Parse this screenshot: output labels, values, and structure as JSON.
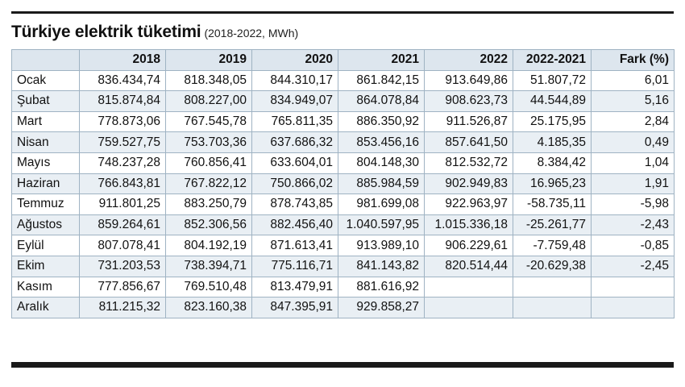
{
  "title": "Türkiye elektrik tüketimi",
  "subtitle": "(2018-2022, MWh)",
  "columns": [
    "",
    "2018",
    "2019",
    "2020",
    "2021",
    "2022",
    "2022-2021",
    "Fark (%)"
  ],
  "rows": [
    [
      "Ocak",
      "836.434,74",
      "818.348,05",
      "844.310,17",
      "861.842,15",
      "913.649,86",
      "51.807,72",
      "6,01"
    ],
    [
      "Şubat",
      "815.874,84",
      "808.227,00",
      "834.949,07",
      "864.078,84",
      "908.623,73",
      "44.544,89",
      "5,16"
    ],
    [
      "Mart",
      "778.873,06",
      "767.545,78",
      "765.811,35",
      "886.350,92",
      "911.526,87",
      "25.175,95",
      "2,84"
    ],
    [
      "Nisan",
      "759.527,75",
      "753.703,36",
      "637.686,32",
      "853.456,16",
      "857.641,50",
      "4.185,35",
      "0,49"
    ],
    [
      "Mayıs",
      "748.237,28",
      "760.856,41",
      "633.604,01",
      "804.148,30",
      "812.532,72",
      "8.384,42",
      "1,04"
    ],
    [
      "Haziran",
      "766.843,81",
      "767.822,12",
      "750.866,02",
      "885.984,59",
      "902.949,83",
      "16.965,23",
      "1,91"
    ],
    [
      "Temmuz",
      "911.801,25",
      "883.250,79",
      "878.743,85",
      "981.699,08",
      "922.963,97",
      "-58.735,11",
      "-5,98"
    ],
    [
      "Ağustos",
      "859.264,61",
      "852.306,56",
      "882.456,40",
      "1.040.597,95",
      "1.015.336,18",
      "-25.261,77",
      "-2,43"
    ],
    [
      "Eylül",
      "807.078,41",
      "804.192,19",
      "871.613,41",
      "913.989,10",
      "906.229,61",
      "-7.759,48",
      "-0,85"
    ],
    [
      "Ekim",
      "731.203,53",
      "738.394,71",
      "775.116,71",
      "841.143,82",
      "820.514,44",
      "-20.629,38",
      "-2,45"
    ],
    [
      "Kasım",
      "777.856,67",
      "769.510,48",
      "813.479,91",
      "881.616,92",
      "",
      "",
      ""
    ],
    [
      "Aralık",
      "811.215,32",
      "823.160,38",
      "847.395,91",
      "929.858,27",
      "",
      "",
      ""
    ]
  ]
}
